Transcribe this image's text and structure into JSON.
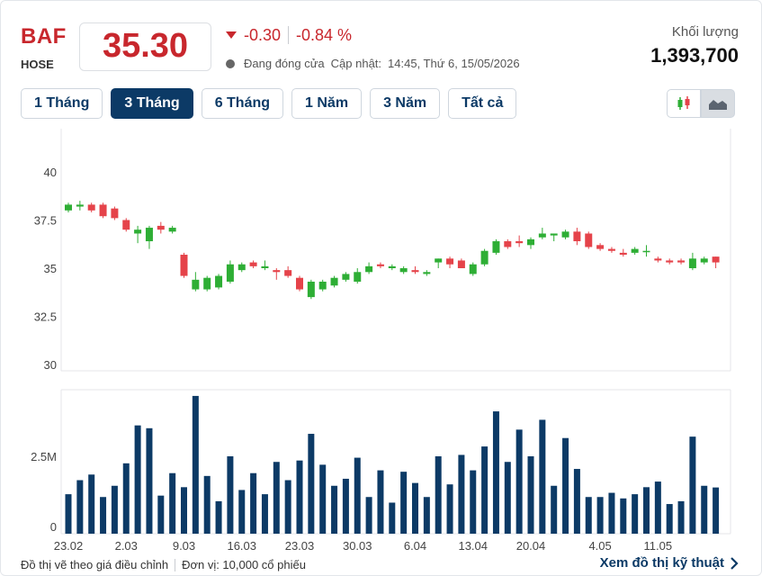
{
  "header": {
    "ticker": "BAF",
    "exchange": "HOSE",
    "price": "35.30",
    "change": "-0.30",
    "change_pct": "-0.84 %",
    "status": "Đang đóng cửa",
    "update_label": "Cập nhật:",
    "update_time": "14:45, Thứ 6, 15/05/2026",
    "volume_label": "Khối lượng",
    "volume_value": "1,393,700"
  },
  "tabs": [
    {
      "label": "1 Tháng",
      "active": false
    },
    {
      "label": "3 Tháng",
      "active": true
    },
    {
      "label": "6 Tháng",
      "active": false
    },
    {
      "label": "1 Năm",
      "active": false
    },
    {
      "label": "3 Năm",
      "active": false
    },
    {
      "label": "Tất cả",
      "active": false
    }
  ],
  "chart_type_buttons": [
    {
      "icon": "candlestick-chart-icon",
      "active": false
    },
    {
      "icon": "area-chart-icon",
      "active": true
    }
  ],
  "colors": {
    "up": "#2eae35",
    "down": "#e5434a",
    "volume": "#0c3a66",
    "accent": "#0c3a66",
    "price": "#c8272d"
  },
  "chart_data": [
    {
      "type": "candlestick",
      "title": "",
      "ylim": [
        30,
        42.5
      ],
      "yticks": [
        "40",
        "37.5",
        "35",
        "32.5",
        "30"
      ],
      "ytick_values": [
        40,
        37.5,
        35,
        32.5,
        30
      ],
      "xtick_labels": [
        "23.02",
        "2.03",
        "9.03",
        "16.03",
        "23.03",
        "30.03",
        "6.04",
        "13.04",
        "20.04",
        "4.05",
        "11.05"
      ],
      "xtick_index": [
        0,
        5,
        10,
        15,
        20,
        25,
        30,
        35,
        40,
        46,
        51
      ],
      "series": [
        {
          "o": 38.0,
          "h": 38.4,
          "l": 37.9,
          "c": 38.3
        },
        {
          "o": 38.2,
          "h": 38.5,
          "l": 38.0,
          "c": 38.3
        },
        {
          "o": 38.3,
          "h": 38.4,
          "l": 37.9,
          "c": 38.0
        },
        {
          "o": 38.3,
          "h": 38.4,
          "l": 37.6,
          "c": 37.7
        },
        {
          "o": 38.1,
          "h": 38.2,
          "l": 37.5,
          "c": 37.6
        },
        {
          "o": 37.5,
          "h": 37.6,
          "l": 36.9,
          "c": 37.0
        },
        {
          "o": 36.8,
          "h": 37.2,
          "l": 36.3,
          "c": 37.0
        },
        {
          "o": 36.4,
          "h": 37.2,
          "l": 36.0,
          "c": 37.1
        },
        {
          "o": 37.2,
          "h": 37.4,
          "l": 36.8,
          "c": 37.0
        },
        {
          "o": 36.9,
          "h": 37.2,
          "l": 36.8,
          "c": 37.1
        },
        {
          "o": 35.7,
          "h": 35.8,
          "l": 34.5,
          "c": 34.6
        },
        {
          "o": 33.9,
          "h": 34.8,
          "l": 33.8,
          "c": 34.4
        },
        {
          "o": 33.9,
          "h": 34.6,
          "l": 33.8,
          "c": 34.5
        },
        {
          "o": 34.0,
          "h": 34.7,
          "l": 33.9,
          "c": 34.6
        },
        {
          "o": 34.3,
          "h": 35.4,
          "l": 34.2,
          "c": 35.2
        },
        {
          "o": 34.9,
          "h": 35.3,
          "l": 34.8,
          "c": 35.2
        },
        {
          "o": 35.3,
          "h": 35.4,
          "l": 35.0,
          "c": 35.1
        },
        {
          "o": 35.0,
          "h": 35.4,
          "l": 34.9,
          "c": 35.1
        },
        {
          "o": 34.9,
          "h": 35.0,
          "l": 34.4,
          "c": 34.8
        },
        {
          "o": 34.9,
          "h": 35.1,
          "l": 34.5,
          "c": 34.6
        },
        {
          "o": 34.5,
          "h": 34.6,
          "l": 33.8,
          "c": 33.9
        },
        {
          "o": 33.5,
          "h": 34.4,
          "l": 33.4,
          "c": 34.3
        },
        {
          "o": 33.9,
          "h": 34.4,
          "l": 33.8,
          "c": 34.3
        },
        {
          "o": 34.1,
          "h": 34.6,
          "l": 34.0,
          "c": 34.5
        },
        {
          "o": 34.4,
          "h": 34.8,
          "l": 34.3,
          "c": 34.7
        },
        {
          "o": 34.3,
          "h": 35.0,
          "l": 34.2,
          "c": 34.8
        },
        {
          "o": 34.8,
          "h": 35.3,
          "l": 34.7,
          "c": 35.1
        },
        {
          "o": 35.2,
          "h": 35.3,
          "l": 35.0,
          "c": 35.1
        },
        {
          "o": 35.0,
          "h": 35.2,
          "l": 34.9,
          "c": 35.1
        },
        {
          "o": 34.8,
          "h": 35.1,
          "l": 34.7,
          "c": 35.0
        },
        {
          "o": 34.9,
          "h": 35.1,
          "l": 34.7,
          "c": 34.8
        },
        {
          "o": 34.7,
          "h": 34.9,
          "l": 34.6,
          "c": 34.8
        },
        {
          "o": 35.3,
          "h": 35.5,
          "l": 35.0,
          "c": 35.5
        },
        {
          "o": 35.5,
          "h": 35.6,
          "l": 35.0,
          "c": 35.2
        },
        {
          "o": 35.4,
          "h": 35.5,
          "l": 35.0,
          "c": 35.0
        },
        {
          "o": 34.7,
          "h": 35.3,
          "l": 34.6,
          "c": 35.2
        },
        {
          "o": 35.2,
          "h": 36.0,
          "l": 35.1,
          "c": 35.9
        },
        {
          "o": 35.8,
          "h": 36.5,
          "l": 35.7,
          "c": 36.4
        },
        {
          "o": 36.4,
          "h": 36.5,
          "l": 36.0,
          "c": 36.1
        },
        {
          "o": 36.4,
          "h": 36.7,
          "l": 36.1,
          "c": 36.3
        },
        {
          "o": 36.2,
          "h": 36.6,
          "l": 36.0,
          "c": 36.5
        },
        {
          "o": 36.6,
          "h": 37.1,
          "l": 36.5,
          "c": 36.8
        },
        {
          "o": 36.7,
          "h": 36.8,
          "l": 36.4,
          "c": 36.8
        },
        {
          "o": 36.6,
          "h": 37.0,
          "l": 36.5,
          "c": 36.9
        },
        {
          "o": 36.9,
          "h": 37.1,
          "l": 36.2,
          "c": 36.4
        },
        {
          "o": 36.8,
          "h": 36.9,
          "l": 36.0,
          "c": 36.1
        },
        {
          "o": 36.2,
          "h": 36.3,
          "l": 35.9,
          "c": 36.0
        },
        {
          "o": 36.0,
          "h": 36.1,
          "l": 35.8,
          "c": 35.9
        },
        {
          "o": 35.8,
          "h": 36.0,
          "l": 35.6,
          "c": 35.7
        },
        {
          "o": 35.8,
          "h": 36.1,
          "l": 35.7,
          "c": 36.0
        },
        {
          "o": 35.9,
          "h": 36.2,
          "l": 35.6,
          "c": 35.9
        },
        {
          "o": 35.5,
          "h": 35.6,
          "l": 35.3,
          "c": 35.4
        },
        {
          "o": 35.4,
          "h": 35.5,
          "l": 35.2,
          "c": 35.3
        },
        {
          "o": 35.4,
          "h": 35.5,
          "l": 35.2,
          "c": 35.3
        },
        {
          "o": 35.0,
          "h": 35.8,
          "l": 34.9,
          "c": 35.5
        },
        {
          "o": 35.3,
          "h": 35.6,
          "l": 35.2,
          "c": 35.5
        },
        {
          "o": 35.6,
          "h": 35.6,
          "l": 35.0,
          "c": 35.3
        }
      ]
    },
    {
      "type": "bar",
      "title": "",
      "yticks": [
        "2.5M",
        "0"
      ],
      "ytick_values": [
        2500000,
        0
      ],
      "ylim": [
        0,
        5000000
      ],
      "values": [
        1150000,
        1650000,
        1850000,
        1050000,
        1450000,
        2250000,
        3600000,
        3500000,
        1100000,
        1900000,
        1400000,
        4650000,
        1800000,
        900000,
        2500000,
        1300000,
        1900000,
        1150000,
        2300000,
        1650000,
        2350000,
        3300000,
        2200000,
        1450000,
        1700000,
        2450000,
        1050000,
        2000000,
        850000,
        1950000,
        1550000,
        1050000,
        2500000,
        1500000,
        2550000,
        2000000,
        2850000,
        4100000,
        2300000,
        3450000,
        2500000,
        3800000,
        1450000,
        3150000,
        2050000,
        1050000,
        1050000,
        1200000,
        1000000,
        1150000,
        1400000,
        1600000,
        800000,
        900000,
        3200000,
        1450000,
        1390000
      ]
    }
  ],
  "footer": {
    "note": "Đồ thị vẽ theo giá điều chỉnh",
    "unit": "Đơn vị: 10,000 cổ phiếu",
    "tech_link": "Xem đồ thị kỹ thuật"
  }
}
